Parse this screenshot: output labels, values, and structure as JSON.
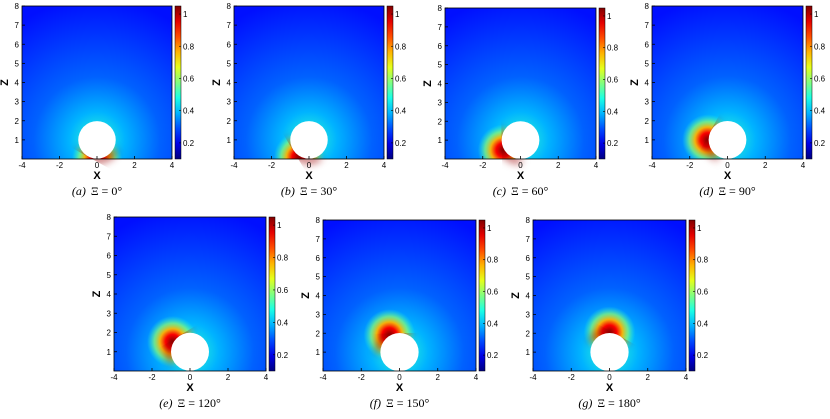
{
  "chart_data": [
    {
      "type": "heatmap",
      "caption_prefix": "(a)",
      "caption_text": "Ξ = 0°",
      "angle_deg": 0,
      "xlabel": "X",
      "ylabel": "Z",
      "xlim": [
        -4,
        4
      ],
      "ylim": [
        0,
        8
      ],
      "xticks": [
        "-4",
        "-2",
        "0",
        "2",
        "4"
      ],
      "yticks": [
        "1",
        "2",
        "3",
        "4",
        "5",
        "6",
        "7",
        "8"
      ],
      "colorbar_ticks": [
        "0.2",
        "0.4",
        "0.6",
        "0.8",
        "1"
      ],
      "clim": [
        0.1,
        1.05
      ],
      "sphere": {
        "center": [
          0,
          1
        ],
        "radius": 1
      },
      "colormap": "jet"
    },
    {
      "type": "heatmap",
      "caption_prefix": "(b)",
      "caption_text": "Ξ = 30°",
      "angle_deg": 30,
      "xlabel": "X",
      "ylabel": "Z",
      "xlim": [
        -4,
        4
      ],
      "ylim": [
        0,
        8
      ],
      "xticks": [
        "-4",
        "-2",
        "0",
        "2",
        "4"
      ],
      "yticks": [
        "1",
        "2",
        "3",
        "4",
        "5",
        "6",
        "7",
        "8"
      ],
      "colorbar_ticks": [
        "0.2",
        "0.4",
        "0.6",
        "0.8",
        "1"
      ],
      "clim": [
        0.1,
        1.05
      ],
      "sphere": {
        "center": [
          0,
          1
        ],
        "radius": 1
      },
      "colormap": "jet"
    },
    {
      "type": "heatmap",
      "caption_prefix": "(c)",
      "caption_text": "Ξ = 60°",
      "angle_deg": 60,
      "xlabel": "X",
      "ylabel": "Z",
      "xlim": [
        -4,
        4
      ],
      "ylim": [
        0,
        8
      ],
      "xticks": [
        "-4",
        "-2",
        "0",
        "2",
        "4"
      ],
      "yticks": [
        "1",
        "2",
        "3",
        "4",
        "5",
        "6",
        "7",
        "8"
      ],
      "colorbar_ticks": [
        "0.2",
        "0.4",
        "0.6",
        "0.8",
        "1"
      ],
      "clim": [
        0.1,
        1.05
      ],
      "sphere": {
        "center": [
          0,
          1
        ],
        "radius": 1
      },
      "colormap": "jet"
    },
    {
      "type": "heatmap",
      "caption_prefix": "(d)",
      "caption_text": "Ξ = 90°",
      "angle_deg": 90,
      "xlabel": "X",
      "ylabel": "Z",
      "xlim": [
        -4,
        4
      ],
      "ylim": [
        0,
        8
      ],
      "xticks": [
        "-4",
        "-2",
        "0",
        "2",
        "4"
      ],
      "yticks": [
        "1",
        "2",
        "3",
        "4",
        "5",
        "6",
        "7",
        "8"
      ],
      "colorbar_ticks": [
        "0.2",
        "0.4",
        "0.6",
        "0.8",
        "1"
      ],
      "clim": [
        0.1,
        1.05
      ],
      "sphere": {
        "center": [
          0,
          1
        ],
        "radius": 1
      },
      "colormap": "jet"
    },
    {
      "type": "heatmap",
      "caption_prefix": "(e)",
      "caption_text": "Ξ = 120°",
      "angle_deg": 120,
      "xlabel": "X",
      "ylabel": "Z",
      "xlim": [
        -4,
        4
      ],
      "ylim": [
        0,
        8
      ],
      "xticks": [
        "-4",
        "-2",
        "0",
        "2",
        "4"
      ],
      "yticks": [
        "1",
        "2",
        "3",
        "4",
        "5",
        "6",
        "7",
        "8"
      ],
      "colorbar_ticks": [
        "0.2",
        "0.4",
        "0.6",
        "0.8",
        "1"
      ],
      "clim": [
        0.1,
        1.05
      ],
      "sphere": {
        "center": [
          0,
          1
        ],
        "radius": 1
      },
      "colormap": "jet"
    },
    {
      "type": "heatmap",
      "caption_prefix": "(f)",
      "caption_text": "Ξ = 150°",
      "angle_deg": 150,
      "xlabel": "X",
      "ylabel": "Z",
      "xlim": [
        -4,
        4
      ],
      "ylim": [
        0,
        8
      ],
      "xticks": [
        "-4",
        "-2",
        "0",
        "2",
        "4"
      ],
      "yticks": [
        "1",
        "2",
        "3",
        "4",
        "5",
        "6",
        "7",
        "8"
      ],
      "colorbar_ticks": [
        "0.2",
        "0.4",
        "0.6",
        "0.8",
        "1"
      ],
      "clim": [
        0.1,
        1.05
      ],
      "sphere": {
        "center": [
          0,
          1
        ],
        "radius": 1
      },
      "colormap": "jet"
    },
    {
      "type": "heatmap",
      "caption_prefix": "(g)",
      "caption_text": "Ξ = 180°",
      "angle_deg": 180,
      "xlabel": "X",
      "ylabel": "Z",
      "xlim": [
        -4,
        4
      ],
      "ylim": [
        0,
        8
      ],
      "xticks": [
        "-4",
        "-2",
        "0",
        "2",
        "4"
      ],
      "yticks": [
        "1",
        "2",
        "3",
        "4",
        "5",
        "6",
        "7",
        "8"
      ],
      "colorbar_ticks": [
        "0.2",
        "0.4",
        "0.6",
        "0.8",
        "1"
      ],
      "clim": [
        0.1,
        1.05
      ],
      "sphere": {
        "center": [
          0,
          1
        ],
        "radius": 1
      },
      "colormap": "jet"
    }
  ]
}
